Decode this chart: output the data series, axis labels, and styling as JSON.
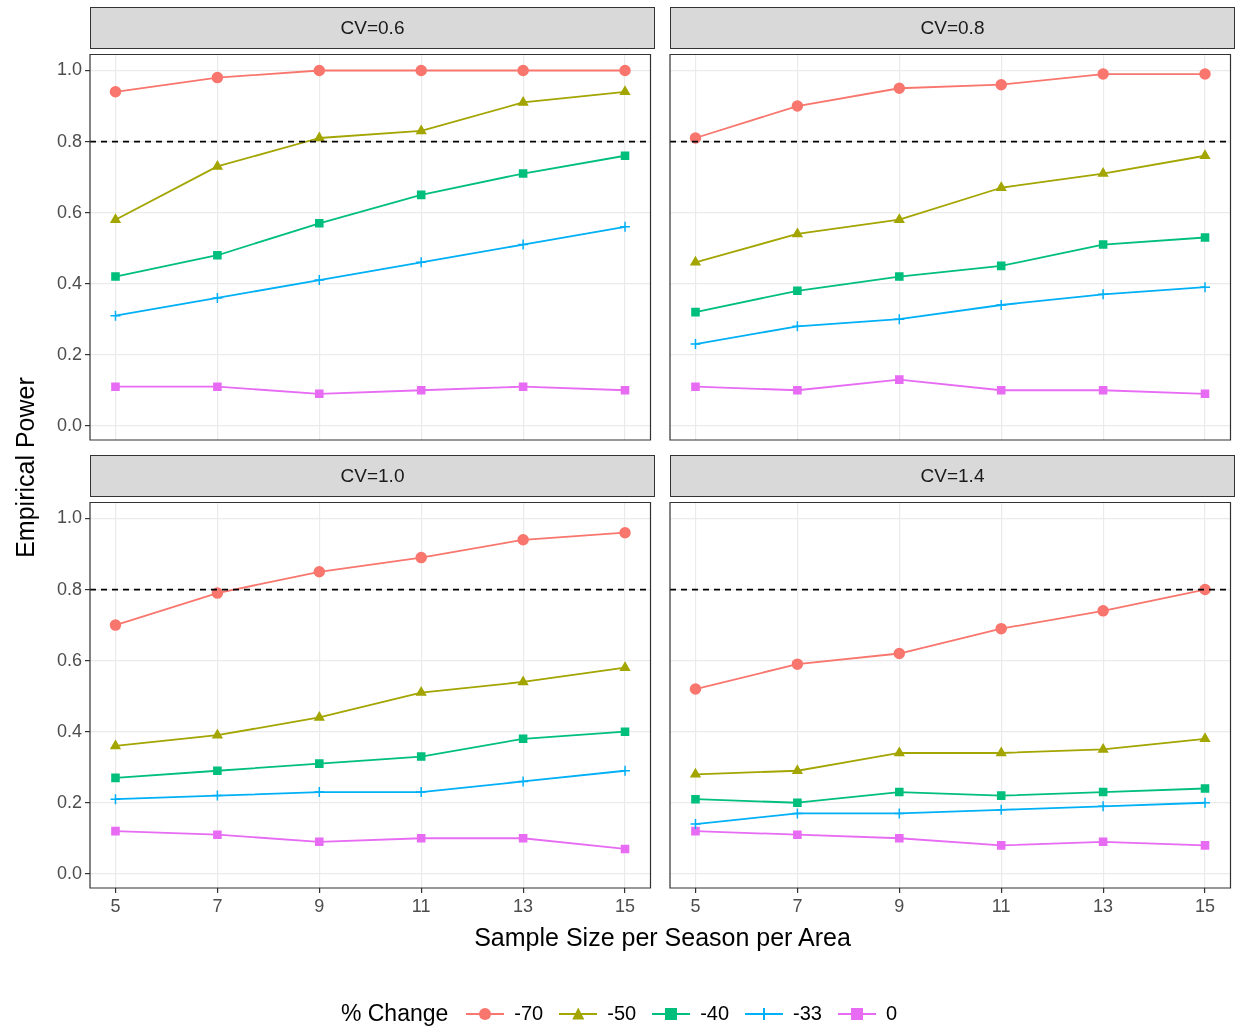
{
  "chart_data": [
    {
      "type": "line",
      "title": "CV=0.6",
      "xlabel": "Sample Size per Season per Area",
      "ylabel": "Empirical Power",
      "legend_title": "% Change",
      "legend": "bottom",
      "grid": true,
      "tick_labels": "y",
      "xlim": [
        4.5,
        15.5
      ],
      "xticks": [
        5,
        7,
        9,
        11,
        13,
        15
      ],
      "ylim": [
        -0.04,
        1.045
      ],
      "yticks": [
        {
          "value": 0,
          "label": "0.0"
        },
        {
          "value": 0.2,
          "label": "0.2"
        },
        {
          "value": 0.4,
          "label": "0.4"
        },
        {
          "value": 0.6,
          "label": "0.6"
        },
        {
          "value": 0.8,
          "label": "0.8"
        },
        {
          "value": 1,
          "label": "1.0"
        }
      ],
      "x": [
        5,
        7,
        9,
        11,
        13,
        15
      ],
      "ref_lines": [
        {
          "axis": "y",
          "value": 0.8,
          "color": "#000000",
          "line_style": "dashed"
        }
      ],
      "series": [
        {
          "name": "-70",
          "color": "#f8766d",
          "marker": "circle",
          "values": [
            0.94,
            0.98,
            1.0,
            1.0,
            1.0,
            1.0
          ]
        },
        {
          "name": "-50",
          "color": "#a3a500",
          "marker": "triangle",
          "values": [
            0.58,
            0.73,
            0.81,
            0.83,
            0.91,
            0.94
          ]
        },
        {
          "name": "-40",
          "color": "#00bf7d",
          "marker": "square",
          "values": [
            0.42,
            0.48,
            0.57,
            0.65,
            0.71,
            0.76
          ]
        },
        {
          "name": "-33",
          "color": "#00b0f6",
          "marker": "cross",
          "values": [
            0.31,
            0.36,
            0.41,
            0.46,
            0.51,
            0.56
          ]
        },
        {
          "name": "0",
          "color": "#e76bf3",
          "marker": "square",
          "values": [
            0.11,
            0.11,
            0.09,
            0.1,
            0.11,
            0.1
          ]
        }
      ]
    },
    {
      "type": "line",
      "title": "CV=0.8",
      "legend": false,
      "grid": true,
      "tick_labels": false,
      "xlim": [
        4.5,
        15.5
      ],
      "xticks": [
        5,
        7,
        9,
        11,
        13,
        15
      ],
      "ylim": [
        -0.04,
        1.045
      ],
      "yticks": [
        {
          "value": 0,
          "label": null
        },
        {
          "value": 0.2,
          "label": null
        },
        {
          "value": 0.4,
          "label": null
        },
        {
          "value": 0.6,
          "label": null
        },
        {
          "value": 0.8,
          "label": null
        },
        {
          "value": 1,
          "label": null
        }
      ],
      "x": [
        5,
        7,
        9,
        11,
        13,
        15
      ],
      "ref_lines": [
        {
          "axis": "y",
          "value": 0.8,
          "color": "#000000",
          "line_style": "dashed"
        }
      ],
      "series": [
        {
          "name": "-70",
          "color": "#f8766d",
          "marker": "circle",
          "values": [
            0.81,
            0.9,
            0.95,
            0.96,
            0.99,
            0.99
          ]
        },
        {
          "name": "-50",
          "color": "#a3a500",
          "marker": "triangle",
          "values": [
            0.46,
            0.54,
            0.58,
            0.67,
            0.71,
            0.76
          ]
        },
        {
          "name": "-40",
          "color": "#00bf7d",
          "marker": "square",
          "values": [
            0.32,
            0.38,
            0.42,
            0.45,
            0.51,
            0.53
          ]
        },
        {
          "name": "-33",
          "color": "#00b0f6",
          "marker": "cross",
          "values": [
            0.23,
            0.28,
            0.3,
            0.34,
            0.37,
            0.39
          ]
        },
        {
          "name": "0",
          "color": "#e76bf3",
          "marker": "square",
          "values": [
            0.11,
            0.1,
            0.13,
            0.1,
            0.1,
            0.09
          ]
        }
      ]
    },
    {
      "type": "line",
      "title": "CV=1.0",
      "legend": false,
      "grid": true,
      "xlim": [
        4.5,
        15.5
      ],
      "xticks": [
        5,
        7,
        9,
        11,
        13,
        15
      ],
      "ylim": [
        -0.04,
        1.045
      ],
      "yticks": [
        {
          "value": 0,
          "label": "0.0"
        },
        {
          "value": 0.2,
          "label": "0.2"
        },
        {
          "value": 0.4,
          "label": "0.4"
        },
        {
          "value": 0.6,
          "label": "0.6"
        },
        {
          "value": 0.8,
          "label": "0.8"
        },
        {
          "value": 1,
          "label": "1.0"
        }
      ],
      "x": [
        5,
        7,
        9,
        11,
        13,
        15
      ],
      "ref_lines": [
        {
          "axis": "y",
          "value": 0.8,
          "color": "#000000",
          "line_style": "dashed"
        }
      ],
      "series": [
        {
          "name": "-70",
          "color": "#f8766d",
          "marker": "circle",
          "values": [
            0.7,
            0.79,
            0.85,
            0.89,
            0.94,
            0.96
          ]
        },
        {
          "name": "-50",
          "color": "#a3a500",
          "marker": "triangle",
          "values": [
            0.36,
            0.39,
            0.44,
            0.51,
            0.54,
            0.58
          ]
        },
        {
          "name": "-40",
          "color": "#00bf7d",
          "marker": "square",
          "values": [
            0.27,
            0.29,
            0.31,
            0.33,
            0.38,
            0.4
          ]
        },
        {
          "name": "-33",
          "color": "#00b0f6",
          "marker": "cross",
          "values": [
            0.21,
            0.22,
            0.23,
            0.23,
            0.26,
            0.29
          ]
        },
        {
          "name": "0",
          "color": "#e76bf3",
          "marker": "square",
          "values": [
            0.12,
            0.11,
            0.09,
            0.1,
            0.1,
            0.07
          ]
        }
      ]
    },
    {
      "type": "line",
      "title": "CV=1.4",
      "legend": false,
      "grid": true,
      "tick_labels": "x",
      "xlim": [
        4.5,
        15.5
      ],
      "xticks": [
        5,
        7,
        9,
        11,
        13,
        15
      ],
      "ylim": [
        -0.04,
        1.045
      ],
      "yticks": [
        {
          "value": 0,
          "label": null
        },
        {
          "value": 0.2,
          "label": null
        },
        {
          "value": 0.4,
          "label": null
        },
        {
          "value": 0.6,
          "label": null
        },
        {
          "value": 0.8,
          "label": null
        },
        {
          "value": 1,
          "label": null
        }
      ],
      "x": [
        5,
        7,
        9,
        11,
        13,
        15
      ],
      "ref_lines": [
        {
          "axis": "y",
          "value": 0.8,
          "color": "#000000",
          "line_style": "dashed"
        }
      ],
      "series": [
        {
          "name": "-70",
          "color": "#f8766d",
          "marker": "circle",
          "values": [
            0.52,
            0.59,
            0.62,
            0.69,
            0.74,
            0.8
          ]
        },
        {
          "name": "-50",
          "color": "#a3a500",
          "marker": "triangle",
          "values": [
            0.28,
            0.29,
            0.34,
            0.34,
            0.35,
            0.38
          ]
        },
        {
          "name": "-40",
          "color": "#00bf7d",
          "marker": "square",
          "values": [
            0.21,
            0.2,
            0.23,
            0.22,
            0.23,
            0.24
          ]
        },
        {
          "name": "-33",
          "color": "#00b0f6",
          "marker": "cross",
          "values": [
            0.14,
            0.17,
            0.17,
            0.18,
            0.19,
            0.2
          ]
        },
        {
          "name": "0",
          "color": "#e76bf3",
          "marker": "square",
          "values": [
            0.12,
            0.11,
            0.1,
            0.08,
            0.09,
            0.08
          ]
        }
      ]
    }
  ]
}
